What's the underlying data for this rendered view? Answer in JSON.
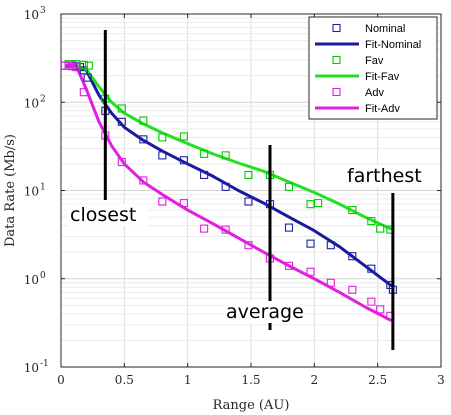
{
  "chart_data": {
    "type": "scatter",
    "title": "",
    "xlabel": "Range (AU)",
    "ylabel": "Data Rate (Mb/s)",
    "xlim": [
      0,
      3
    ],
    "ylim": [
      0.1,
      1000
    ],
    "yscale": "log",
    "grid": true,
    "legend_position": "top-right",
    "x_ticks": [
      0,
      0.5,
      1,
      1.5,
      2,
      2.5,
      3
    ],
    "x_tick_labels": [
      "0",
      "0.5",
      "1",
      "1.5",
      "2",
      "2.5",
      "3"
    ],
    "y_ticks": [
      0.1,
      1,
      10,
      100,
      1000
    ],
    "y_tick_labels": [
      {
        "base": "10",
        "exp": "-1"
      },
      {
        "base": "10",
        "exp": "0"
      },
      {
        "base": "10",
        "exp": "1"
      },
      {
        "base": "10",
        "exp": "2"
      },
      {
        "base": "10",
        "exp": "3"
      }
    ],
    "series": [
      {
        "name": "Nominal",
        "kind": "markers",
        "color": "#1f1fa8",
        "x": [
          0.03,
          0.06,
          0.09,
          0.12,
          0.15,
          0.18,
          0.21,
          0.35,
          0.48,
          0.65,
          0.8,
          0.97,
          1.13,
          1.3,
          1.48,
          1.65,
          1.8,
          1.97,
          2.13,
          2.3,
          2.45,
          2.6,
          2.62
        ],
        "y": [
          260,
          260,
          260,
          255,
          250,
          230,
          190,
          80,
          60,
          38,
          25,
          22,
          15,
          11,
          7.5,
          7,
          3.8,
          2.5,
          2.4,
          1.8,
          1.3,
          0.85,
          0.75
        ]
      },
      {
        "name": "Fit-Nominal",
        "kind": "line",
        "color": "#1a1aa0",
        "x": [
          0.05,
          0.12,
          0.2,
          0.3,
          0.4,
          0.5,
          0.65,
          0.8,
          1.0,
          1.2,
          1.4,
          1.6,
          1.8,
          2.0,
          2.2,
          2.4,
          2.6
        ],
        "y": [
          260,
          260,
          230,
          120,
          75,
          52,
          37,
          28,
          20,
          14.5,
          10,
          7.2,
          5,
          3.5,
          2.3,
          1.4,
          0.85
        ]
      },
      {
        "name": "Fav",
        "kind": "markers",
        "color": "#00cc00",
        "x": [
          0.06,
          0.12,
          0.18,
          0.22,
          0.35,
          0.48,
          0.65,
          0.8,
          0.97,
          1.13,
          1.3,
          1.48,
          1.65,
          1.8,
          1.97,
          2.03,
          2.3,
          2.45,
          2.52,
          2.6
        ],
        "y": [
          270,
          270,
          265,
          260,
          110,
          85,
          62,
          40,
          41,
          26,
          25,
          15,
          15,
          11,
          7,
          7.2,
          6,
          4.5,
          3.7,
          3.6
        ]
      },
      {
        "name": "Fit-Fav",
        "kind": "line",
        "color": "#22e022",
        "x": [
          0.12,
          0.2,
          0.3,
          0.4,
          0.5,
          0.65,
          0.8,
          1.0,
          1.2,
          1.4,
          1.6,
          1.8,
          2.0,
          2.2,
          2.4,
          2.6
        ],
        "y": [
          260,
          235,
          150,
          100,
          75,
          57,
          45,
          34,
          26,
          20.5,
          16.5,
          12.5,
          9.5,
          7,
          5,
          3.7
        ]
      },
      {
        "name": "Adv",
        "kind": "markers",
        "color": "#e020e0",
        "x": [
          0.03,
          0.06,
          0.09,
          0.12,
          0.18,
          0.35,
          0.48,
          0.65,
          0.8,
          0.97,
          1.13,
          1.3,
          1.48,
          1.65,
          1.8,
          1.97,
          2.13,
          2.3,
          2.45,
          2.52,
          2.6
        ],
        "y": [
          260,
          260,
          255,
          250,
          130,
          42,
          21,
          13,
          7.5,
          7.2,
          3.7,
          3.6,
          2.4,
          1.7,
          1.4,
          1.2,
          0.9,
          0.75,
          0.55,
          0.45,
          0.38
        ]
      },
      {
        "name": "Fit-Adv",
        "kind": "line",
        "color": "#e020e0",
        "x": [
          0.05,
          0.12,
          0.2,
          0.3,
          0.4,
          0.5,
          0.65,
          0.8,
          1.0,
          1.2,
          1.4,
          1.6,
          1.8,
          2.0,
          2.2,
          2.4,
          2.6
        ],
        "y": [
          265,
          260,
          140,
          60,
          32,
          20,
          12.5,
          9,
          6,
          4.2,
          2.9,
          2,
          1.4,
          1,
          0.7,
          0.48,
          0.34
        ]
      }
    ],
    "annotations": [
      {
        "text": "closest",
        "x": 0.35
      },
      {
        "text": "average",
        "x": 1.65
      },
      {
        "text": "farthest",
        "x": 2.62
      }
    ]
  }
}
